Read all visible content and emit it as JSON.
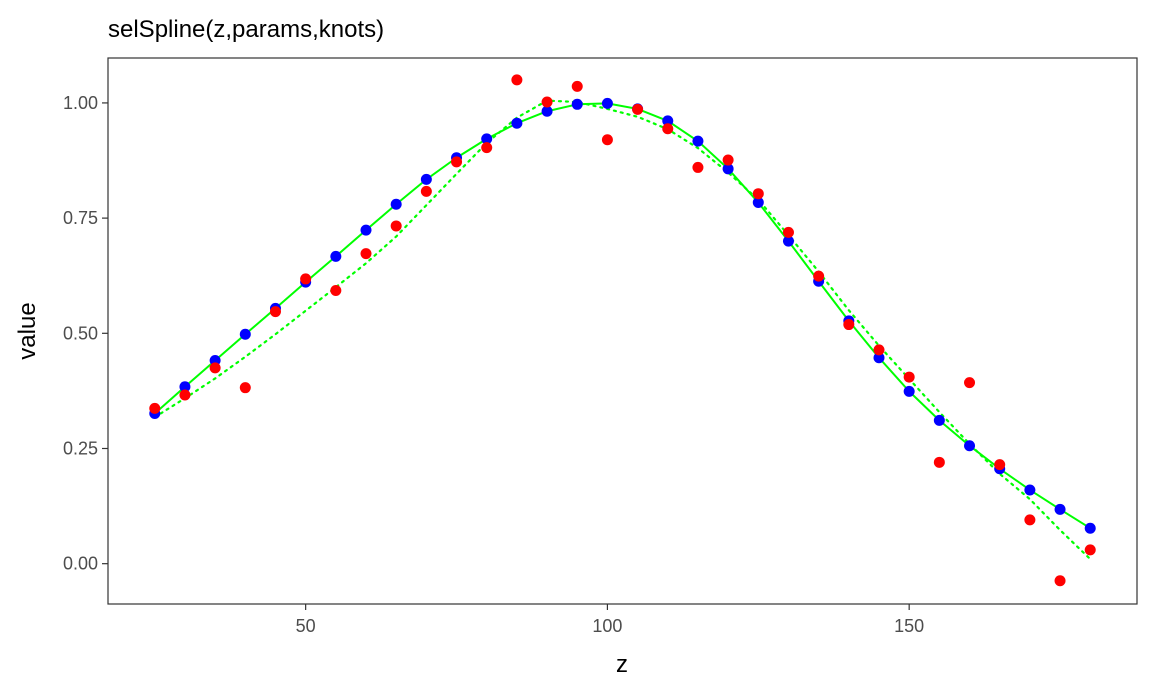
{
  "chart_data": {
    "type": "scatter",
    "title": "selSpline(z,params,knots)",
    "xlabel": "z",
    "ylabel": "value",
    "xlim": [
      17.25,
      187.75
    ],
    "ylim": [
      -0.0875,
      1.0975
    ],
    "x_ticks": [
      {
        "value": 50,
        "label": "50"
      },
      {
        "value": 100,
        "label": "100"
      },
      {
        "value": 150,
        "label": "150"
      }
    ],
    "y_ticks": [
      {
        "value": 0.0,
        "label": "0.00"
      },
      {
        "value": 0.25,
        "label": "0.25"
      },
      {
        "value": 0.5,
        "label": "0.50"
      },
      {
        "value": 0.75,
        "label": "0.75"
      },
      {
        "value": 1.0,
        "label": "1.00"
      }
    ],
    "grid": false,
    "colors": {
      "observed": "#ff0000",
      "fitted": "#0000ff",
      "spline": "#00ff00",
      "true": "#00ff00"
    },
    "series": [
      {
        "name": "observed",
        "kind": "points",
        "x": [
          25,
          30,
          35,
          40,
          45,
          50,
          55,
          60,
          65,
          70,
          75,
          80,
          85,
          90,
          95,
          100,
          105,
          110,
          115,
          120,
          125,
          130,
          135,
          140,
          145,
          150,
          155,
          160,
          165,
          170,
          175,
          180
        ],
        "y": [
          0.337,
          0.366,
          0.425,
          0.382,
          0.547,
          0.618,
          0.593,
          0.673,
          0.733,
          0.808,
          0.872,
          0.903,
          1.05,
          1.002,
          1.036,
          0.92,
          0.986,
          0.944,
          0.86,
          0.876,
          0.803,
          0.719,
          0.624,
          0.519,
          0.464,
          0.405,
          0.22,
          0.393,
          0.215,
          0.095,
          -0.037,
          0.03
        ]
      },
      {
        "name": "fitted",
        "kind": "points",
        "x": [
          25,
          30,
          35,
          40,
          45,
          50,
          55,
          60,
          65,
          70,
          75,
          80,
          85,
          90,
          95,
          100,
          105,
          110,
          115,
          120,
          125,
          130,
          135,
          140,
          145,
          150,
          155,
          160,
          165,
          170,
          175,
          180
        ],
        "y": [
          0.326,
          0.384,
          0.441,
          0.498,
          0.554,
          0.611,
          0.667,
          0.724,
          0.78,
          0.834,
          0.881,
          0.922,
          0.956,
          0.982,
          0.997,
          0.999,
          0.987,
          0.961,
          0.917,
          0.857,
          0.784,
          0.7,
          0.613,
          0.527,
          0.447,
          0.374,
          0.311,
          0.256,
          0.206,
          0.16,
          0.118,
          0.077
        ]
      },
      {
        "name": "spline",
        "kind": "line-solid",
        "x": [
          25,
          30,
          35,
          40,
          45,
          50,
          55,
          60,
          65,
          70,
          75,
          80,
          85,
          90,
          95,
          100,
          105,
          110,
          115,
          120,
          125,
          130,
          135,
          140,
          145,
          150,
          155,
          160,
          165,
          170,
          175,
          180
        ],
        "y": [
          0.326,
          0.384,
          0.441,
          0.498,
          0.554,
          0.611,
          0.667,
          0.724,
          0.78,
          0.834,
          0.881,
          0.922,
          0.956,
          0.982,
          0.997,
          0.999,
          0.987,
          0.961,
          0.917,
          0.857,
          0.784,
          0.7,
          0.613,
          0.527,
          0.447,
          0.374,
          0.311,
          0.256,
          0.206,
          0.16,
          0.118,
          0.077
        ]
      },
      {
        "name": "true",
        "kind": "line-dotted",
        "x": [
          25,
          30,
          35,
          40,
          45,
          50,
          55,
          60,
          65,
          70,
          75,
          80,
          85,
          90,
          95,
          100,
          105,
          110,
          115,
          120,
          125,
          130,
          135,
          140,
          145,
          150,
          155,
          160,
          165,
          170,
          175,
          180
        ],
        "y": [
          0.318,
          0.359,
          0.402,
          0.449,
          0.498,
          0.549,
          0.6,
          0.652,
          0.71,
          0.778,
          0.846,
          0.913,
          0.968,
          1.005,
          1.002,
          0.987,
          0.97,
          0.943,
          0.902,
          0.849,
          0.79,
          0.713,
          0.634,
          0.55,
          0.473,
          0.401,
          0.329,
          0.26,
          0.195,
          0.14,
          0.073,
          0.01
        ]
      }
    ]
  }
}
